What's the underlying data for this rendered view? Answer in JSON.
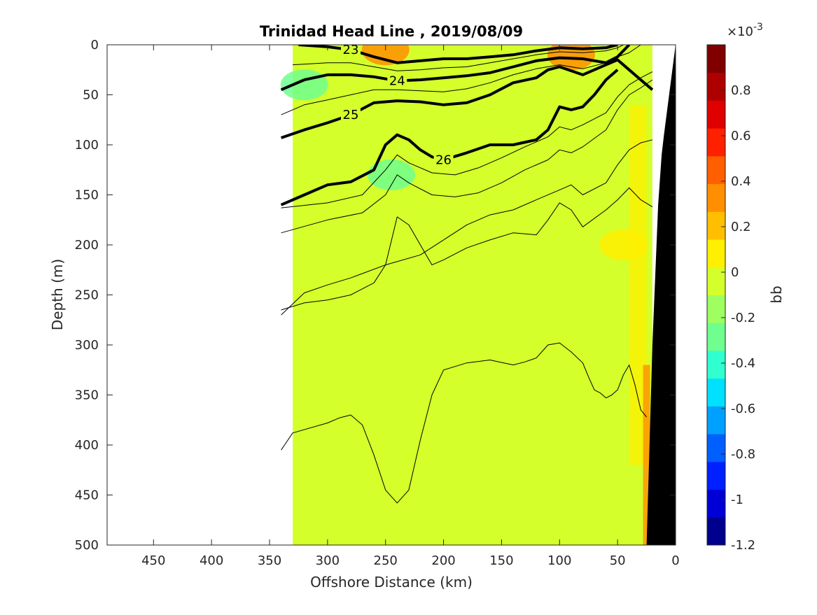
{
  "chart_data": {
    "type": "contour",
    "title": "Trinidad Head Line , 2019/08/09",
    "xlabel": "Offshore Distance (km)",
    "ylabel": "Depth (m)",
    "xlim": [
      490,
      0
    ],
    "ylim": [
      500,
      0
    ],
    "x_reversed": true,
    "y_reversed": true,
    "xticks": [
      "450",
      "400",
      "350",
      "300",
      "250",
      "200",
      "150",
      "100",
      "50",
      "0"
    ],
    "yticks": [
      "0",
      "50",
      "100",
      "150",
      "200",
      "250",
      "300",
      "350",
      "400",
      "450",
      "500"
    ],
    "colorbar": {
      "label": "bb",
      "exponent_label": "×10",
      "exponent": "-3",
      "ticks": [
        "0.8",
        "0.6",
        "0.4",
        "0.2",
        "0",
        "-0.2",
        "-0.4",
        "-0.6",
        "-0.8",
        "-1",
        "-1.2"
      ],
      "tick_values": [
        0.8,
        0.6,
        0.4,
        0.2,
        0,
        -0.2,
        -0.4,
        -0.6,
        -0.8,
        -1,
        -1.2
      ],
      "range": [
        -1.2,
        1.0
      ],
      "colormap": [
        "#00008f",
        "#0000d6",
        "#0020ff",
        "#0060ff",
        "#00a0ff",
        "#00e0ff",
        "#30ffcf",
        "#70ff8f",
        "#9fff60",
        "#d4ff2b",
        "#ffef00",
        "#ffbf00",
        "#ff8f00",
        "#ff5f00",
        "#ff2000",
        "#df0000",
        "#af0000",
        "#800000"
      ]
    },
    "field": {
      "data_x_range_km": [
        330,
        20
      ],
      "dominant_value": 0.13,
      "dominant_color": "#d4ff2b",
      "features": [
        {
          "kind": "high",
          "color": "#ff8f00",
          "near_km": 250,
          "near_depth_m": 5
        },
        {
          "kind": "high",
          "color": "#ff8f00",
          "near_km": 90,
          "near_depth_m": 10
        },
        {
          "kind": "high",
          "color": "#ffef00",
          "near_km": 45,
          "near_depth_m": 200
        },
        {
          "kind": "low",
          "color": "#70ff8f",
          "near_km": 245,
          "near_depth_m": 130
        },
        {
          "kind": "low",
          "color": "#70ff8f",
          "near_km": 320,
          "near_depth_m": 40
        }
      ]
    },
    "isopycnals": [
      {
        "label": "23",
        "major": true,
        "x": [
          325,
          300,
          280,
          260,
          240,
          220,
          200,
          180,
          160,
          140,
          120,
          100,
          80,
          60,
          50
        ],
        "y": [
          0,
          2,
          5,
          12,
          18,
          16,
          14,
          14,
          12,
          10,
          6,
          3,
          4,
          3,
          0
        ]
      },
      {
        "label": "24",
        "major": true,
        "x": [
          340,
          320,
          300,
          280,
          260,
          240,
          220,
          200,
          180,
          160,
          140,
          120,
          100,
          80,
          60,
          50,
          40
        ],
        "y": [
          45,
          35,
          30,
          30,
          32,
          36,
          35,
          33,
          31,
          28,
          22,
          16,
          13,
          14,
          18,
          12,
          0
        ]
      },
      {
        "label": "25",
        "major": true,
        "x": [
          340,
          320,
          300,
          280,
          260,
          240,
          220,
          200,
          180,
          160,
          140,
          120,
          110,
          100,
          80,
          60,
          50,
          40,
          30,
          20
        ],
        "y": [
          93,
          85,
          78,
          70,
          58,
          56,
          57,
          60,
          58,
          50,
          38,
          33,
          25,
          22,
          30,
          20,
          15,
          25,
          35,
          45
        ]
      },
      {
        "label": "26",
        "major": true,
        "x": [
          340,
          320,
          300,
          280,
          260,
          250,
          240,
          230,
          220,
          210,
          200,
          180,
          160,
          140,
          120,
          110,
          100,
          90,
          80,
          70,
          60,
          50
        ],
        "y": [
          160,
          150,
          140,
          137,
          125,
          100,
          90,
          95,
          105,
          112,
          115,
          108,
          100,
          100,
          95,
          85,
          62,
          65,
          62,
          50,
          35,
          25
        ]
      },
      {
        "label": "",
        "major": false,
        "x": [
          340,
          300,
          270,
          250,
          240,
          230,
          210,
          190,
          170,
          150,
          130,
          110,
          100,
          90,
          80,
          60,
          50,
          40,
          30,
          20
        ],
        "y": [
          188,
          175,
          168,
          150,
          130,
          138,
          150,
          152,
          148,
          138,
          125,
          115,
          105,
          108,
          102,
          85,
          65,
          50,
          43,
          35
        ]
      },
      {
        "label": "",
        "major": false,
        "x": [
          340,
          300,
          270,
          250,
          240,
          230,
          210,
          190,
          170,
          150,
          130,
          110,
          100,
          90,
          80,
          60,
          50,
          40,
          30,
          20
        ],
        "y": [
          163,
          158,
          150,
          125,
          110,
          118,
          128,
          130,
          123,
          113,
          102,
          92,
          82,
          85,
          80,
          68,
          52,
          40,
          33,
          27
        ]
      },
      {
        "label": "",
        "major": false,
        "x": [
          340,
          320,
          300,
          280,
          260,
          240,
          220,
          200,
          180,
          160,
          140,
          120,
          100,
          90,
          80,
          60,
          50,
          40,
          30
        ],
        "y": [
          70,
          60,
          55,
          50,
          45,
          45,
          46,
          47,
          44,
          38,
          30,
          24,
          20,
          22,
          24,
          18,
          12,
          8,
          0
        ]
      },
      {
        "label": "",
        "major": false,
        "x": [
          330,
          300,
          280,
          260,
          240,
          220,
          200,
          180,
          160,
          140,
          120,
          100,
          80,
          60,
          50,
          45
        ],
        "y": [
          20,
          18,
          18,
          22,
          26,
          25,
          23,
          22,
          18,
          14,
          10,
          7,
          8,
          6,
          3,
          0
        ]
      },
      {
        "label": "",
        "major": false,
        "x": [
          340,
          320,
          300,
          280,
          250,
          220,
          200,
          180,
          160,
          140,
          120,
          100,
          90,
          80,
          60,
          50,
          40,
          30,
          20
        ],
        "y": [
          270,
          248,
          240,
          233,
          220,
          210,
          195,
          180,
          170,
          165,
          155,
          145,
          140,
          150,
          138,
          120,
          105,
          98,
          95
        ]
      },
      {
        "label": "",
        "major": false,
        "x": [
          340,
          320,
          300,
          280,
          260,
          250,
          240,
          230,
          220,
          210,
          200,
          180,
          160,
          140,
          120,
          110,
          100,
          90,
          80,
          60,
          50,
          40,
          30,
          20
        ],
        "y": [
          265,
          258,
          255,
          250,
          238,
          220,
          172,
          180,
          200,
          220,
          215,
          203,
          195,
          188,
          190,
          175,
          158,
          165,
          182,
          165,
          155,
          143,
          155,
          162
        ]
      },
      {
        "label": "",
        "major": false,
        "x": [
          340,
          330,
          300,
          290,
          280,
          270,
          260,
          250,
          240,
          230,
          220,
          210,
          200,
          180,
          160,
          140,
          130,
          120,
          110,
          100,
          90,
          80,
          75,
          70,
          65,
          60,
          55,
          50,
          45,
          40,
          35,
          30,
          25
        ],
        "y": [
          405,
          388,
          378,
          373,
          370,
          380,
          410,
          445,
          458,
          445,
          395,
          350,
          325,
          318,
          315,
          320,
          317,
          313,
          300,
          298,
          307,
          318,
          332,
          345,
          348,
          353,
          350,
          345,
          330,
          320,
          340,
          365,
          372
        ]
      }
    ],
    "seafloor": {
      "color": "#000000",
      "x": [
        25,
        20,
        15,
        12,
        10,
        0,
        0
      ],
      "y": [
        500,
        300,
        160,
        110,
        90,
        0,
        500
      ]
    }
  }
}
